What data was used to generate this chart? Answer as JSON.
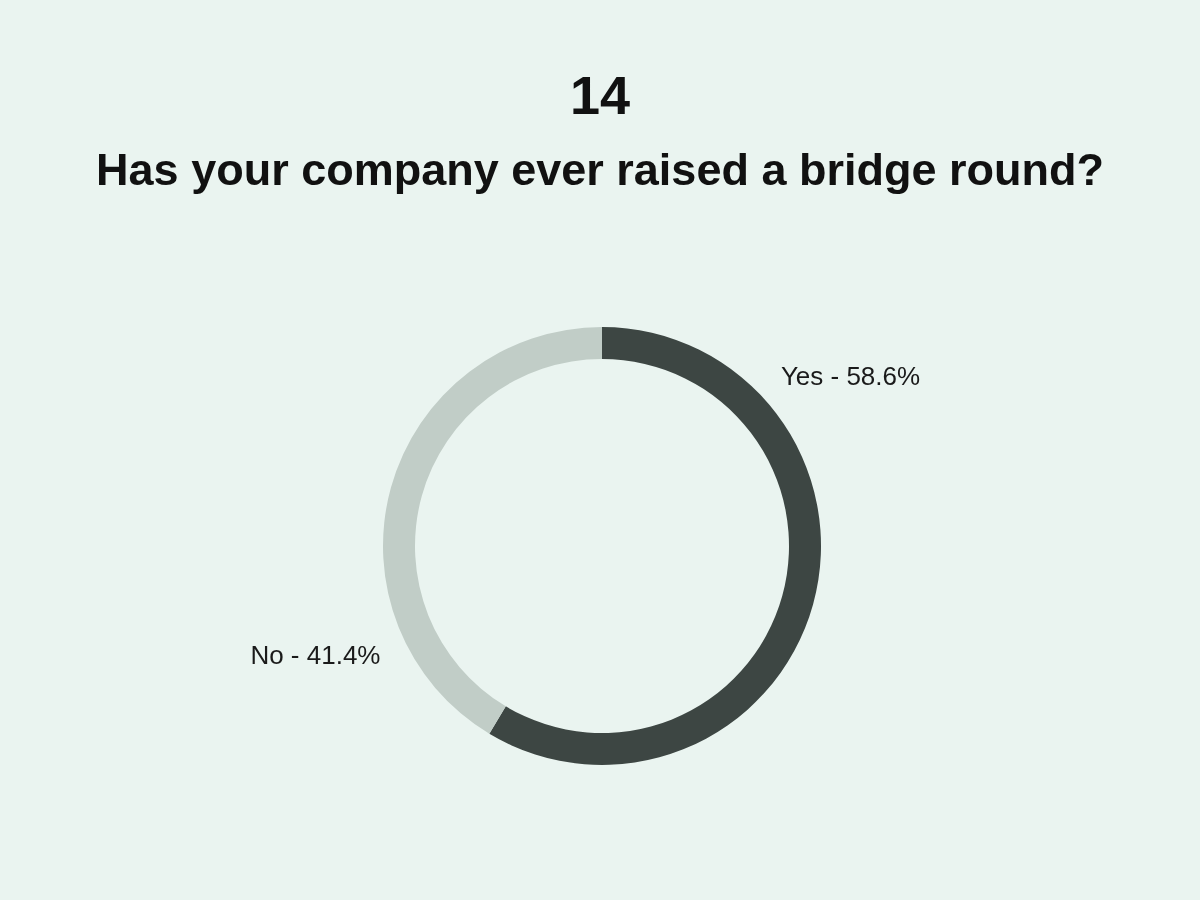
{
  "chart_data": {
    "type": "donut",
    "title": "14",
    "subtitle": "Has your company ever raised a bridge round?",
    "categories": [
      "Yes",
      "No"
    ],
    "values": [
      58.6,
      41.4
    ],
    "colors": [
      "#3d4643",
      "#c1cdc7"
    ],
    "value_labels": [
      "58.6%",
      "41.4%"
    ]
  }
}
